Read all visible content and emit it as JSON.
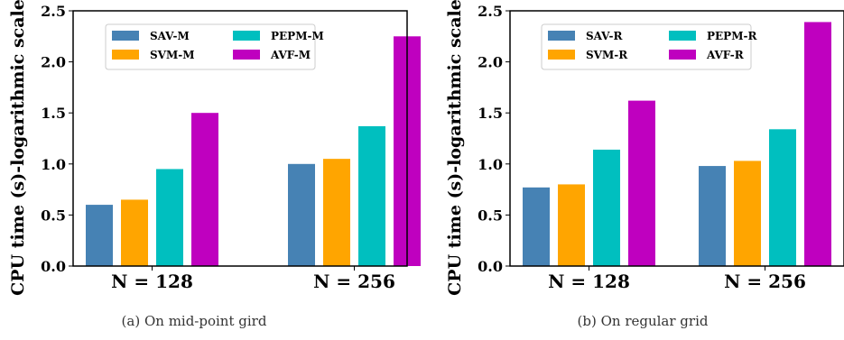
{
  "colors": {
    "SAV": "#4682b4",
    "SVM": "#ffa500",
    "PEPM": "#00bfbf",
    "AVF": "#bf00bf"
  },
  "chart_data": [
    {
      "type": "bar",
      "caption": "(a) On mid-point gird",
      "ylabel": "CPU time (s)-logarithmic scale",
      "xlabel": "",
      "ylim": [
        0,
        2.5
      ],
      "yticks": [
        "0.0",
        "0.5",
        "1.0",
        "1.5",
        "2.0",
        "2.5"
      ],
      "categories": [
        "N = 128",
        "N = 256"
      ],
      "legend_position": "top-center",
      "series": [
        {
          "name": "SAV-M",
          "color_key": "SAV",
          "values": [
            0.6,
            1.0
          ]
        },
        {
          "name": "SVM-M",
          "color_key": "SVM",
          "values": [
            0.65,
            1.05
          ]
        },
        {
          "name": "PEPM-M",
          "color_key": "PEPM",
          "values": [
            0.95,
            1.37
          ]
        },
        {
          "name": "AVF-M",
          "color_key": "AVF",
          "values": [
            1.5,
            2.25
          ]
        }
      ]
    },
    {
      "type": "bar",
      "caption": "(b) On regular grid",
      "ylabel": "CPU time (s)-logarithmic scale",
      "xlabel": "",
      "ylim": [
        0,
        2.5
      ],
      "yticks": [
        "0.0",
        "0.5",
        "1.0",
        "1.5",
        "2.0",
        "2.5"
      ],
      "categories": [
        "N = 128",
        "N = 256"
      ],
      "legend_position": "top-center",
      "series": [
        {
          "name": "SAV-R",
          "color_key": "SAV",
          "values": [
            0.77,
            0.98
          ]
        },
        {
          "name": "SVM-R",
          "color_key": "SVM",
          "values": [
            0.8,
            1.03
          ]
        },
        {
          "name": "PEPM-R",
          "color_key": "PEPM",
          "values": [
            1.14,
            1.34
          ]
        },
        {
          "name": "AVF-R",
          "color_key": "AVF",
          "values": [
            1.62,
            2.39
          ]
        }
      ]
    }
  ]
}
